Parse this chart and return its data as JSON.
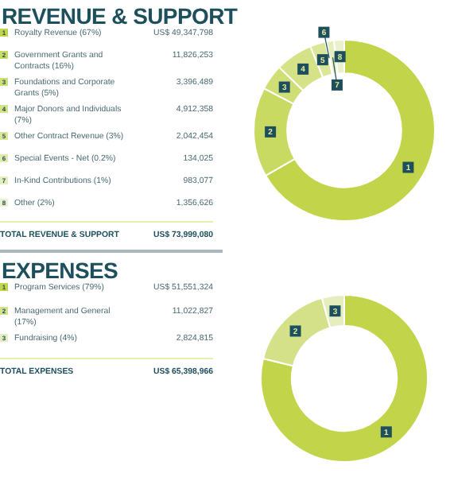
{
  "chart_data": [
    {
      "type": "donut",
      "title": "REVENUE & SUPPORT",
      "legend": "left",
      "categories": [
        "Royalty Revenue (67%)",
        "Government Grants and Contracts (16%)",
        "Foundations and Corporate Grants (5%)",
        "Major Donors and Individuals (7%)",
        "Other Contract Revenue (3%)",
        "Special Events - Net (0.2%)",
        "In-Kind Contributions (1%)",
        "Other (2%)"
      ],
      "values": [
        49347798,
        11826253,
        3396489,
        4912358,
        2042454,
        134025,
        983077,
        1356626
      ],
      "value_labels": [
        "US$ 49,347,798",
        "11,826,253",
        "3,396,489",
        "4,912,358",
        "2,042,454",
        "134,025",
        "983,077",
        "1,356,626"
      ],
      "colors": [
        "#c2d54a",
        "#c9da62",
        "#cfde75",
        "#d5e287",
        "#dbe698",
        "#e1eaab",
        "#e6eebd",
        "#ebf1cc"
      ],
      "annotations": [
        {
          "text": "1",
          "x": "Royalty Revenue (67%)"
        },
        {
          "text": "2",
          "x": "Government Grants and Contracts (16%)"
        },
        {
          "text": "3",
          "x": "Foundations and Corporate Grants (5%)"
        },
        {
          "text": "4",
          "x": "Major Donors and Individuals (7%)"
        },
        {
          "text": "5",
          "x": "Other Contract Revenue (3%)"
        },
        {
          "text": "6",
          "x": "Special Events - Net (0.2%)"
        },
        {
          "text": "7",
          "x": "In-Kind Contributions (1%)"
        },
        {
          "text": "8",
          "x": "Other (2%)"
        },
        "TOTAL REVENUE & SUPPORT",
        "US$ 73,999,080"
      ]
    },
    {
      "type": "donut",
      "title": "EXPENSES",
      "legend": "left",
      "categories": [
        "Program Services (79%)",
        "Management and General (17%)",
        "Fundraising (4%)"
      ],
      "values": [
        51551324,
        11022827,
        2824815
      ],
      "value_labels": [
        "US$ 51,551,324",
        "11,022,827",
        "2,824,815"
      ],
      "colors": [
        "#c2d54a",
        "#d4e188",
        "#e6eec0"
      ],
      "annotations": [
        {
          "text": "1",
          "x": "Program Services (79%)"
        },
        {
          "text": "2",
          "x": "Management and General (17%)"
        },
        {
          "text": "3",
          "x": "Fundraising (4%)"
        },
        "TOTAL EXPENSES",
        "US$ 65,398,966"
      ]
    }
  ]
}
